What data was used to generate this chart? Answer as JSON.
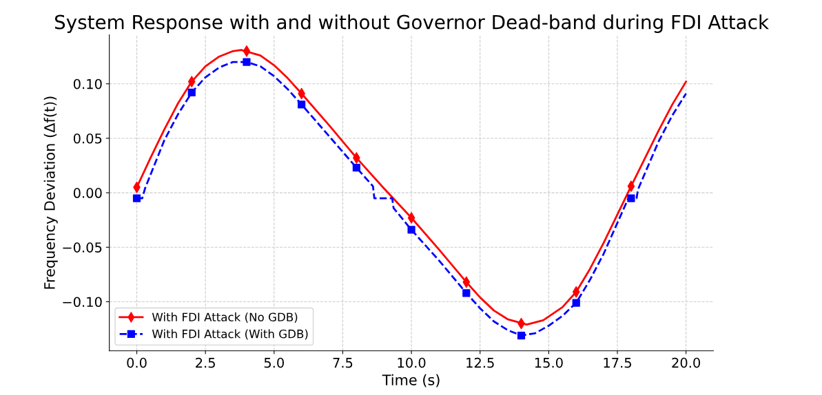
{
  "chart_data": {
    "type": "line",
    "title": "System Response with and without Governor Dead-band during FDI Attack",
    "xlabel": "Time (s)",
    "ylabel": "Frequency Deviation (Δf(t))",
    "xlim": [
      -1.0,
      21.0
    ],
    "ylim": [
      -0.145,
      0.145
    ],
    "xticks": [
      {
        "value": 0,
        "label": "0.0"
      },
      {
        "value": 2.5,
        "label": "2.5"
      },
      {
        "value": 5,
        "label": "5.0"
      },
      {
        "value": 7.5,
        "label": "7.5"
      },
      {
        "value": 10,
        "label": "10.0"
      },
      {
        "value": 12.5,
        "label": "12.5"
      },
      {
        "value": 15,
        "label": "15.0"
      },
      {
        "value": 17.5,
        "label": "17.5"
      },
      {
        "value": 20,
        "label": "20.0"
      }
    ],
    "yticks": [
      {
        "value": -0.1,
        "label": "−0.10"
      },
      {
        "value": -0.05,
        "label": "−0.05"
      },
      {
        "value": 0,
        "label": "0.00"
      },
      {
        "value": 0.05,
        "label": "0.05"
      },
      {
        "value": 0.1,
        "label": "0.10"
      }
    ],
    "grid": true,
    "legend": "bottom left",
    "series": [
      {
        "name": "With FDI Attack (No GDB)",
        "color": "#ff0000",
        "line_style": "solid",
        "marker": "none",
        "x": [
          0,
          0.5,
          1,
          1.5,
          2,
          2.5,
          3,
          3.5,
          3.8,
          4.5,
          5,
          5.5,
          6,
          7,
          8,
          9,
          10,
          11,
          12,
          12.5,
          13,
          13.5,
          14.2,
          14.8,
          15.5,
          16,
          16.5,
          17,
          18,
          19,
          19.5,
          20
        ],
        "values": [
          0.005,
          0.032,
          0.058,
          0.082,
          0.102,
          0.116,
          0.125,
          0.13,
          0.131,
          0.126,
          0.117,
          0.105,
          0.091,
          0.062,
          0.032,
          0.004,
          -0.023,
          -0.052,
          -0.082,
          -0.096,
          -0.108,
          -0.116,
          -0.121,
          -0.117,
          -0.105,
          -0.091,
          -0.07,
          -0.046,
          0.006,
          0.057,
          0.081,
          0.102
        ]
      },
      {
        "name": "With FDI Attack (With GDB)",
        "color": "#0000ff",
        "line_style": "dashed",
        "marker": "none",
        "x": [
          0,
          0.2,
          0.3,
          1,
          1.5,
          2,
          2.5,
          3,
          3.5,
          4,
          4.5,
          5,
          5.5,
          6,
          7,
          8,
          8.6,
          8.65,
          9.3,
          9.35,
          10,
          11,
          12,
          12.5,
          13,
          13.5,
          14,
          14.5,
          15,
          15.5,
          16,
          16.5,
          17,
          17.9,
          18.2,
          18.25,
          19,
          19.5,
          20
        ],
        "values": [
          -0.005,
          -0.005,
          0.004,
          0.048,
          0.072,
          0.092,
          0.106,
          0.115,
          0.12,
          0.12,
          0.116,
          0.107,
          0.095,
          0.081,
          0.052,
          0.023,
          0.006,
          -0.005,
          -0.005,
          -0.014,
          -0.034,
          -0.062,
          -0.092,
          -0.106,
          -0.118,
          -0.126,
          -0.131,
          -0.129,
          -0.122,
          -0.113,
          -0.101,
          -0.08,
          -0.056,
          -0.005,
          -0.005,
          0.003,
          0.047,
          0.071,
          0.091
        ]
      },
      {
        "type": "scatter",
        "color": "#ff0000",
        "marker": "diamond",
        "x": [
          0,
          2,
          4,
          6,
          8,
          10,
          12,
          14,
          16,
          18
        ],
        "values": [
          0.005,
          0.102,
          0.13,
          0.091,
          0.032,
          -0.023,
          -0.082,
          -0.12,
          -0.091,
          0.006
        ]
      },
      {
        "type": "scatter",
        "color": "#0000ff",
        "marker": "square",
        "x": [
          0,
          2,
          4,
          6,
          8,
          10,
          12,
          14,
          16,
          18
        ],
        "values": [
          -0.005,
          0.092,
          0.12,
          0.081,
          0.023,
          -0.034,
          -0.092,
          -0.131,
          -0.101,
          -0.005
        ]
      }
    ]
  }
}
